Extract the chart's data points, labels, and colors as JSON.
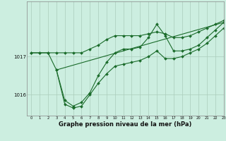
{
  "bg_color": "#cceee0",
  "line_color": "#1a6b2a",
  "grid_color": "#aaccbb",
  "xlabel": "Graphe pression niveau de la mer (hPa)",
  "xlabel_fontsize": 6.0,
  "ylabel_ticks": [
    1016,
    1017
  ],
  "xlim": [
    -0.5,
    23
  ],
  "ylim": [
    1015.45,
    1018.45
  ],
  "ytick_labels": [
    "1016",
    "1017"
  ],
  "series": [
    {
      "x": [
        0,
        1,
        2,
        3,
        4,
        5,
        6,
        7,
        8,
        9,
        10,
        11,
        12,
        13,
        14,
        15,
        16,
        17,
        18,
        19,
        20,
        21,
        22,
        23
      ],
      "y": [
        1017.1,
        1017.1,
        1017.1,
        1017.1,
        1017.1,
        1017.1,
        1017.1,
        1017.2,
        1017.3,
        1017.45,
        1017.55,
        1017.55,
        1017.55,
        1017.55,
        1017.6,
        1017.65,
        1017.6,
        1017.5,
        1017.5,
        1017.55,
        1017.65,
        1017.75,
        1017.85,
        1017.95
      ],
      "has_markers": true
    },
    {
      "x": [
        0,
        1,
        2,
        3,
        4,
        5,
        6,
        7,
        8,
        9,
        10,
        11,
        12,
        13,
        14,
        15,
        16,
        17,
        18,
        19,
        20,
        21,
        22,
        23
      ],
      "y": [
        1017.1,
        1017.1,
        1017.1,
        1016.65,
        1015.85,
        1015.7,
        1015.8,
        1016.05,
        1016.5,
        1016.85,
        1017.1,
        1017.2,
        1017.2,
        1017.25,
        1017.5,
        1017.85,
        1017.55,
        1017.15,
        1017.15,
        1017.2,
        1017.3,
        1017.5,
        1017.7,
        1017.9
      ],
      "has_markers": true
    },
    {
      "x": [
        3,
        4,
        5,
        6,
        7,
        8,
        9,
        10,
        11,
        12,
        13,
        14,
        15,
        16,
        17,
        18,
        19,
        20,
        21,
        22,
        23
      ],
      "y": [
        1016.65,
        1015.75,
        1015.65,
        1015.7,
        1016.0,
        1016.3,
        1016.55,
        1016.75,
        1016.8,
        1016.85,
        1016.9,
        1017.0,
        1017.15,
        1016.95,
        1016.95,
        1017.0,
        1017.1,
        1017.2,
        1017.35,
        1017.55,
        1017.75
      ],
      "has_markers": true
    },
    {
      "x": [
        3,
        23
      ],
      "y": [
        1016.65,
        1017.9
      ],
      "has_markers": false
    }
  ],
  "marker": "D",
  "markersize": 2.0,
  "linewidth": 0.8
}
